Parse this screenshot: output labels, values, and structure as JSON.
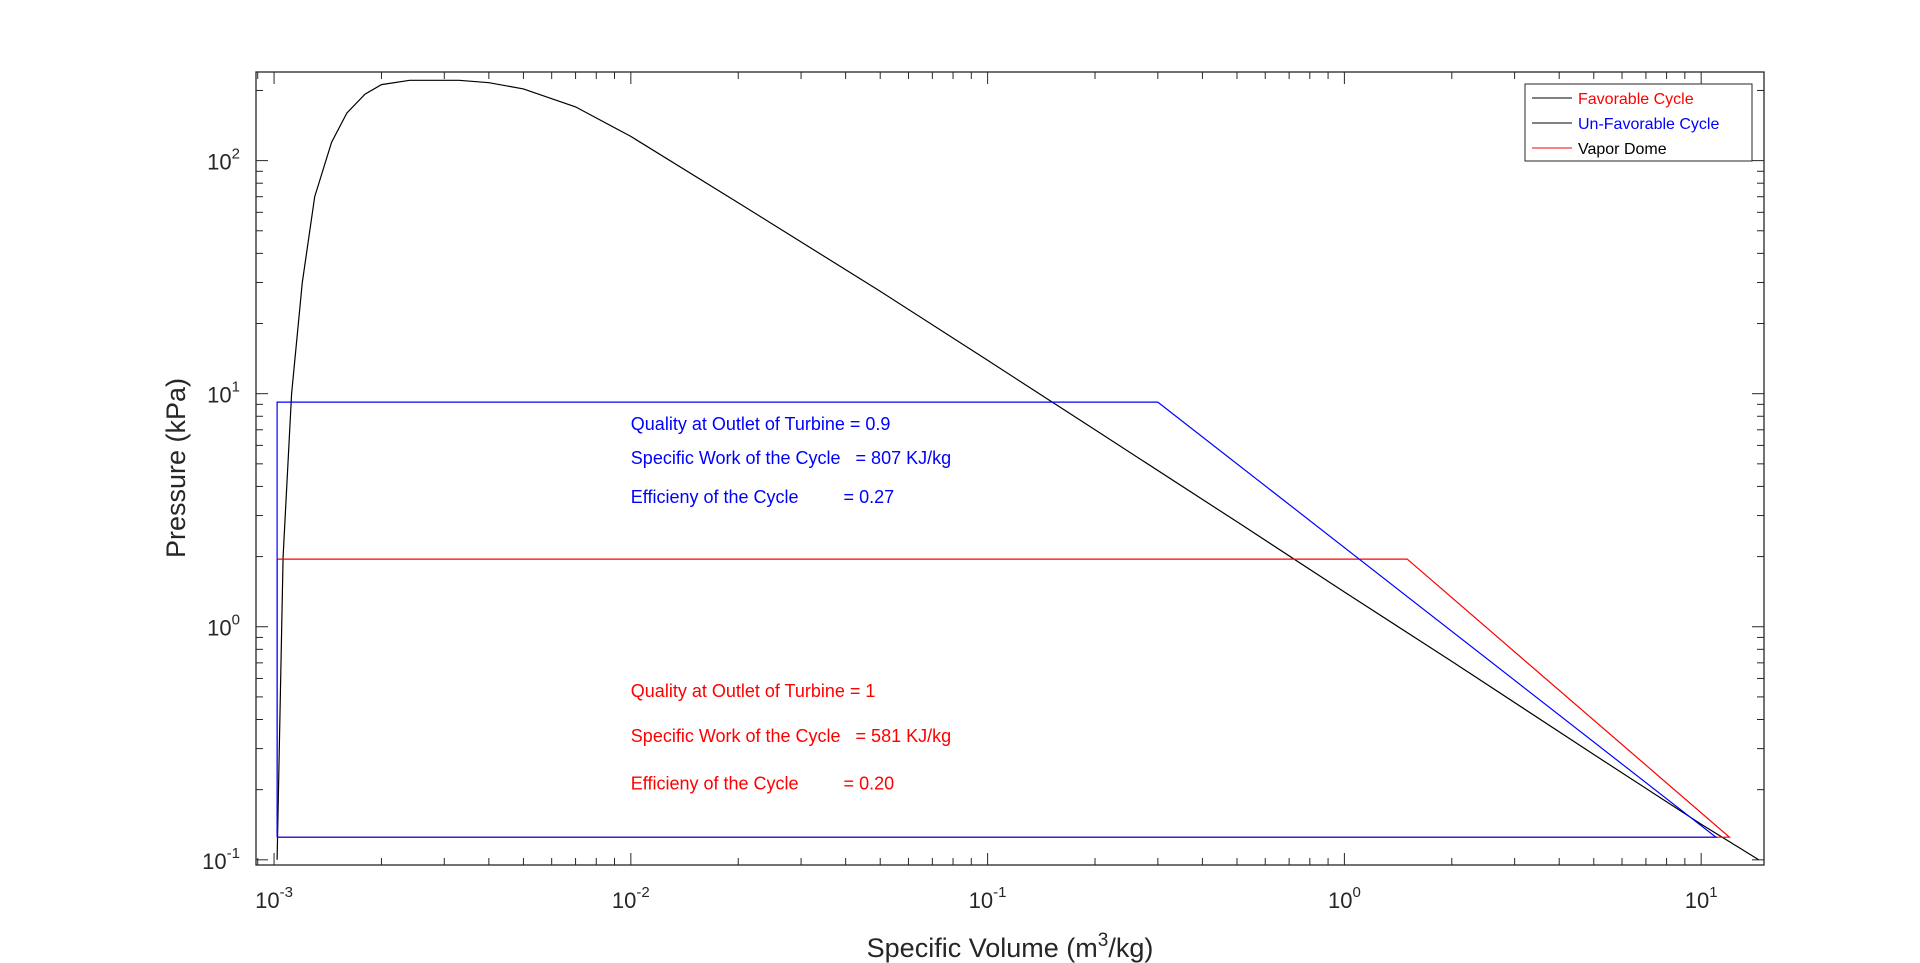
{
  "chart_data": {
    "type": "line",
    "title": "",
    "xlabel": {
      "base": "Specific Volume (m",
      "sup": "3",
      "tail": "/kg)"
    },
    "ylabel": "Pressure (kPa)",
    "x_scale": "log",
    "y_scale": "log",
    "xlim": [
      0.00089,
      15
    ],
    "ylim": [
      0.095,
      240
    ],
    "grid": false,
    "x_ticks": [
      {
        "value": 0.001,
        "base": "10",
        "exp": "-3"
      },
      {
        "value": 0.01,
        "base": "10",
        "exp": "-2"
      },
      {
        "value": 0.1,
        "base": "10",
        "exp": "-1"
      },
      {
        "value": 1,
        "base": "10",
        "exp": "0"
      },
      {
        "value": 10,
        "base": "10",
        "exp": "1"
      }
    ],
    "y_ticks": [
      {
        "value": 0.1,
        "base": "10",
        "exp": "-1"
      },
      {
        "value": 1,
        "base": "10",
        "exp": "0"
      },
      {
        "value": 10,
        "base": "10",
        "exp": "1"
      },
      {
        "value": 100,
        "base": "10",
        "exp": "2"
      }
    ],
    "legend": {
      "placement": "top-right",
      "entries": [
        {
          "label": "Favorable Cycle",
          "line_color": "#000000",
          "text_color": "#ff0000"
        },
        {
          "label": "Un-Favorable Cycle",
          "line_color": "#000000",
          "text_color": "#0000ff"
        },
        {
          "label": "Vapor Dome",
          "line_color": "#ff0000",
          "text_color": "#000000"
        }
      ]
    },
    "series": [
      {
        "color": "#000000",
        "points": [
          [
            0.00102,
            0.1
          ],
          [
            0.00106,
            2
          ],
          [
            0.00112,
            10
          ],
          [
            0.0012,
            30
          ],
          [
            0.0013,
            70
          ],
          [
            0.00145,
            120
          ],
          [
            0.0016,
            160
          ],
          [
            0.0018,
            193
          ],
          [
            0.002,
            212
          ],
          [
            0.0024,
            221
          ],
          [
            0.0028,
            221
          ],
          [
            0.0033,
            221
          ],
          [
            0.004,
            216
          ],
          [
            0.005,
            203
          ],
          [
            0.007,
            170
          ],
          [
            0.01,
            127
          ],
          [
            0.02,
            66
          ],
          [
            0.05,
            27.5
          ],
          [
            0.1,
            13.9
          ],
          [
            0.2,
            7
          ],
          [
            0.5,
            2.82
          ],
          [
            1,
            1.41
          ],
          [
            2,
            0.71
          ],
          [
            5,
            0.283
          ],
          [
            10,
            0.142
          ],
          [
            14.5,
            0.1
          ]
        ]
      },
      {
        "color": "#ff0000",
        "points": [
          [
            0.00102,
            0.125
          ],
          [
            0.00102,
            1.95
          ],
          [
            1.5,
            1.95
          ],
          [
            12.0,
            0.125
          ],
          [
            0.00102,
            0.125
          ]
        ]
      },
      {
        "color": "#0000ff",
        "points": [
          [
            0.00102,
            0.125
          ],
          [
            0.00102,
            9.2
          ],
          [
            0.3,
            9.2
          ],
          [
            11.0,
            0.125
          ],
          [
            0.00102,
            0.125
          ]
        ]
      }
    ],
    "annotations": [
      {
        "text": "Quality at Outlet of Turbine = 0.9",
        "color": "#0000ff",
        "x": 0.01,
        "y": 7.0
      },
      {
        "text": "Specific Work of the Cycle   = 807 KJ/kg",
        "color": "#0000ff",
        "x": 0.01,
        "y": 5.0
      },
      {
        "text": "Efficieny of the Cycle         = 0.27",
        "color": "#0000ff",
        "x": 0.01,
        "y": 3.4
      },
      {
        "text": "Quality at Outlet of Turbine = 1",
        "color": "#ff0000",
        "x": 0.01,
        "y": 0.5
      },
      {
        "text": "Specific Work of the Cycle   = 581 KJ/kg",
        "color": "#ff0000",
        "x": 0.01,
        "y": 0.32
      },
      {
        "text": "Efficieny of the Cycle         = 0.20",
        "color": "#ff0000",
        "x": 0.01,
        "y": 0.2
      }
    ]
  }
}
